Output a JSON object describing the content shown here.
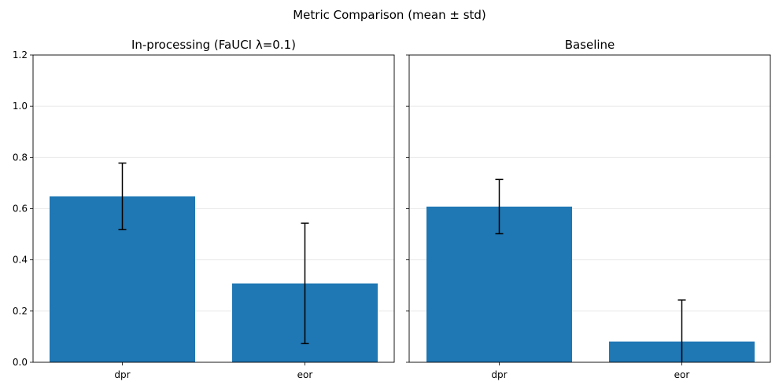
{
  "figure": {
    "title": "Metric Comparison (mean ± std)"
  },
  "chart_data": [
    {
      "type": "bar",
      "title": "In-processing (FaUCI λ=0.1)",
      "categories": [
        "dpr",
        "eor"
      ],
      "values": [
        0.648,
        0.308
      ],
      "errors": [
        0.13,
        0.235
      ],
      "ylim": [
        0,
        1.2
      ],
      "yticks": [
        "0.0",
        "0.2",
        "0.4",
        "0.6",
        "0.8",
        "1.0",
        "1.2"
      ],
      "grid": "y",
      "bar_color": "#1f77b4"
    },
    {
      "type": "bar",
      "title": "Baseline",
      "categories": [
        "dpr",
        "eor"
      ],
      "values": [
        0.608,
        0.081
      ],
      "errors": [
        0.106,
        0.162
      ],
      "ylim": [
        0,
        1.2
      ],
      "grid": "y",
      "bar_color": "#1f77b4"
    }
  ]
}
